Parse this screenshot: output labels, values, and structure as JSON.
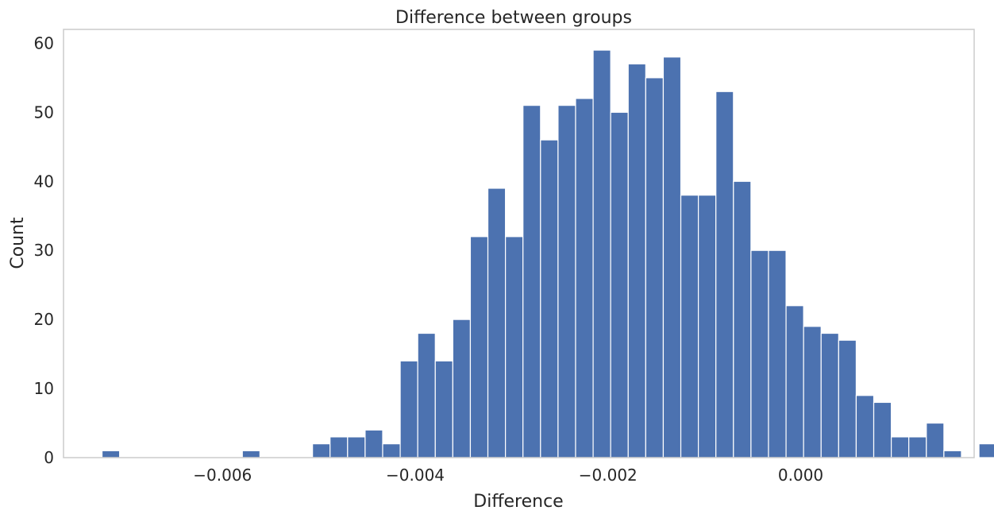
{
  "chart_data": {
    "type": "bar",
    "title": "Difference between groups",
    "xlabel": "Difference",
    "ylabel": "Count",
    "xlim": [
      -0.00765,
      0.0018
    ],
    "ylim": [
      0,
      62
    ],
    "grid": false,
    "bar_color": "#4c72b0",
    "bar_edge_color": "#ffffff",
    "frame_color": "#cccccc",
    "text_color": "#262626",
    "bin_start": -0.00725,
    "bin_width": 0.000182,
    "counts": [
      1,
      0,
      0,
      0,
      0,
      0,
      0,
      0,
      1,
      0,
      0,
      0,
      2,
      3,
      3,
      4,
      2,
      14,
      18,
      14,
      20,
      32,
      39,
      32,
      51,
      46,
      51,
      52,
      59,
      50,
      57,
      55,
      58,
      38,
      38,
      53,
      40,
      30,
      30,
      22,
      19,
      18,
      17,
      9,
      8,
      3,
      3,
      5,
      1,
      0,
      2
    ],
    "xticks": [
      {
        "value": -0.006,
        "label": "−0.006"
      },
      {
        "value": -0.004,
        "label": "−0.004"
      },
      {
        "value": -0.002,
        "label": "−0.002"
      },
      {
        "value": 0.0,
        "label": "0.000"
      }
    ],
    "yticks": [
      {
        "value": 0,
        "label": "0"
      },
      {
        "value": 10,
        "label": "10"
      },
      {
        "value": 20,
        "label": "20"
      },
      {
        "value": 30,
        "label": "30"
      },
      {
        "value": 40,
        "label": "40"
      },
      {
        "value": 50,
        "label": "50"
      },
      {
        "value": 60,
        "label": "60"
      }
    ]
  }
}
